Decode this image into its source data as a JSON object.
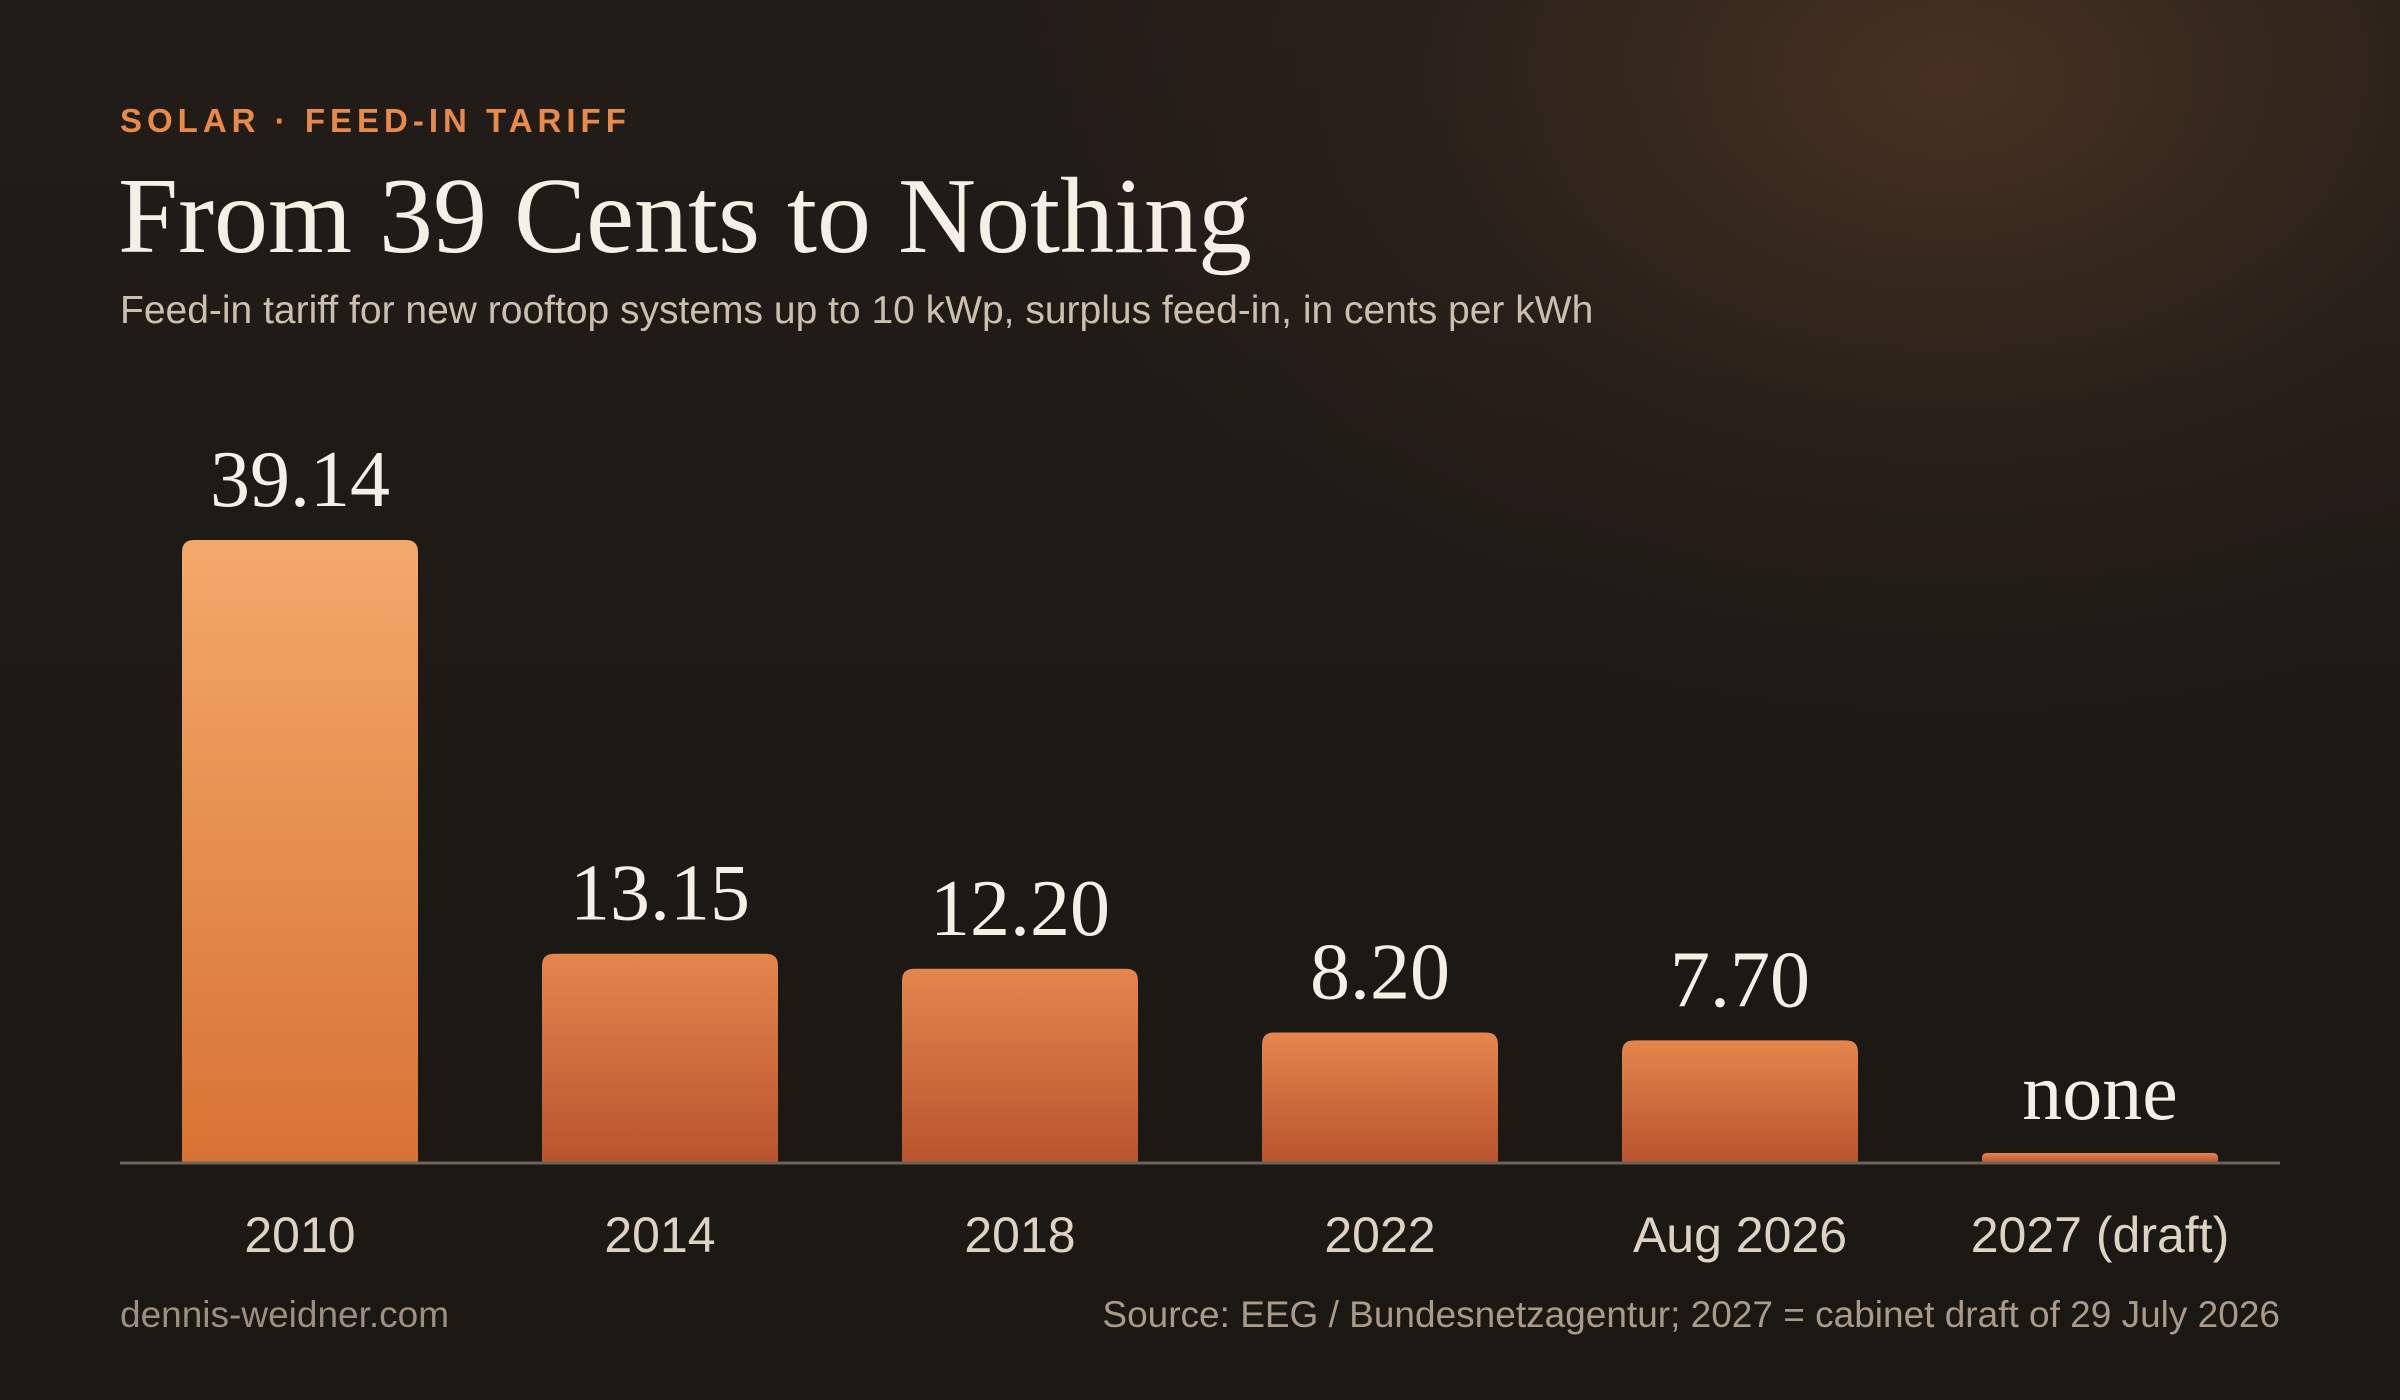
{
  "header": {
    "eyebrow": "SOLAR · FEED-IN TARIFF",
    "title": "From 39 Cents to Nothing",
    "subtitle": "Feed-in tariff for new rooftop systems up to 10 kWp, surplus feed-in, in cents per kWh"
  },
  "footer": {
    "site": "dennis-weidner.com",
    "source": "Source: EEG / Bundesnetzagentur; 2027 = cabinet draft of 29 July 2026"
  },
  "colors": {
    "accent": "#e88a4c",
    "bar_top_tallest": "#f3a96a",
    "bar_bottom_tallest": "#d77234",
    "bar_top": "#e4864d",
    "bar_bottom": "#b9532d",
    "baseline": "#6d6357",
    "value_label": "#f6efe6",
    "category_label": "#ded2c3"
  },
  "chart_data": {
    "type": "bar",
    "categories": [
      "2010",
      "2014",
      "2018",
      "2022",
      "Aug 2026",
      "2027 (draft)"
    ],
    "values": [
      39.14,
      13.15,
      12.2,
      8.2,
      7.7,
      0
    ],
    "value_labels": [
      "39.14",
      "13.15",
      "12.20",
      "8.20",
      "7.70",
      "none"
    ],
    "title": "From 39 Cents to Nothing",
    "subtitle": "Feed-in tariff for new rooftop systems up to 10 kWp, surplus feed-in, in cents per kWh",
    "xlabel": "",
    "ylabel": "",
    "ylim": [
      0,
      39.14
    ],
    "grid": false,
    "legend": "none"
  }
}
